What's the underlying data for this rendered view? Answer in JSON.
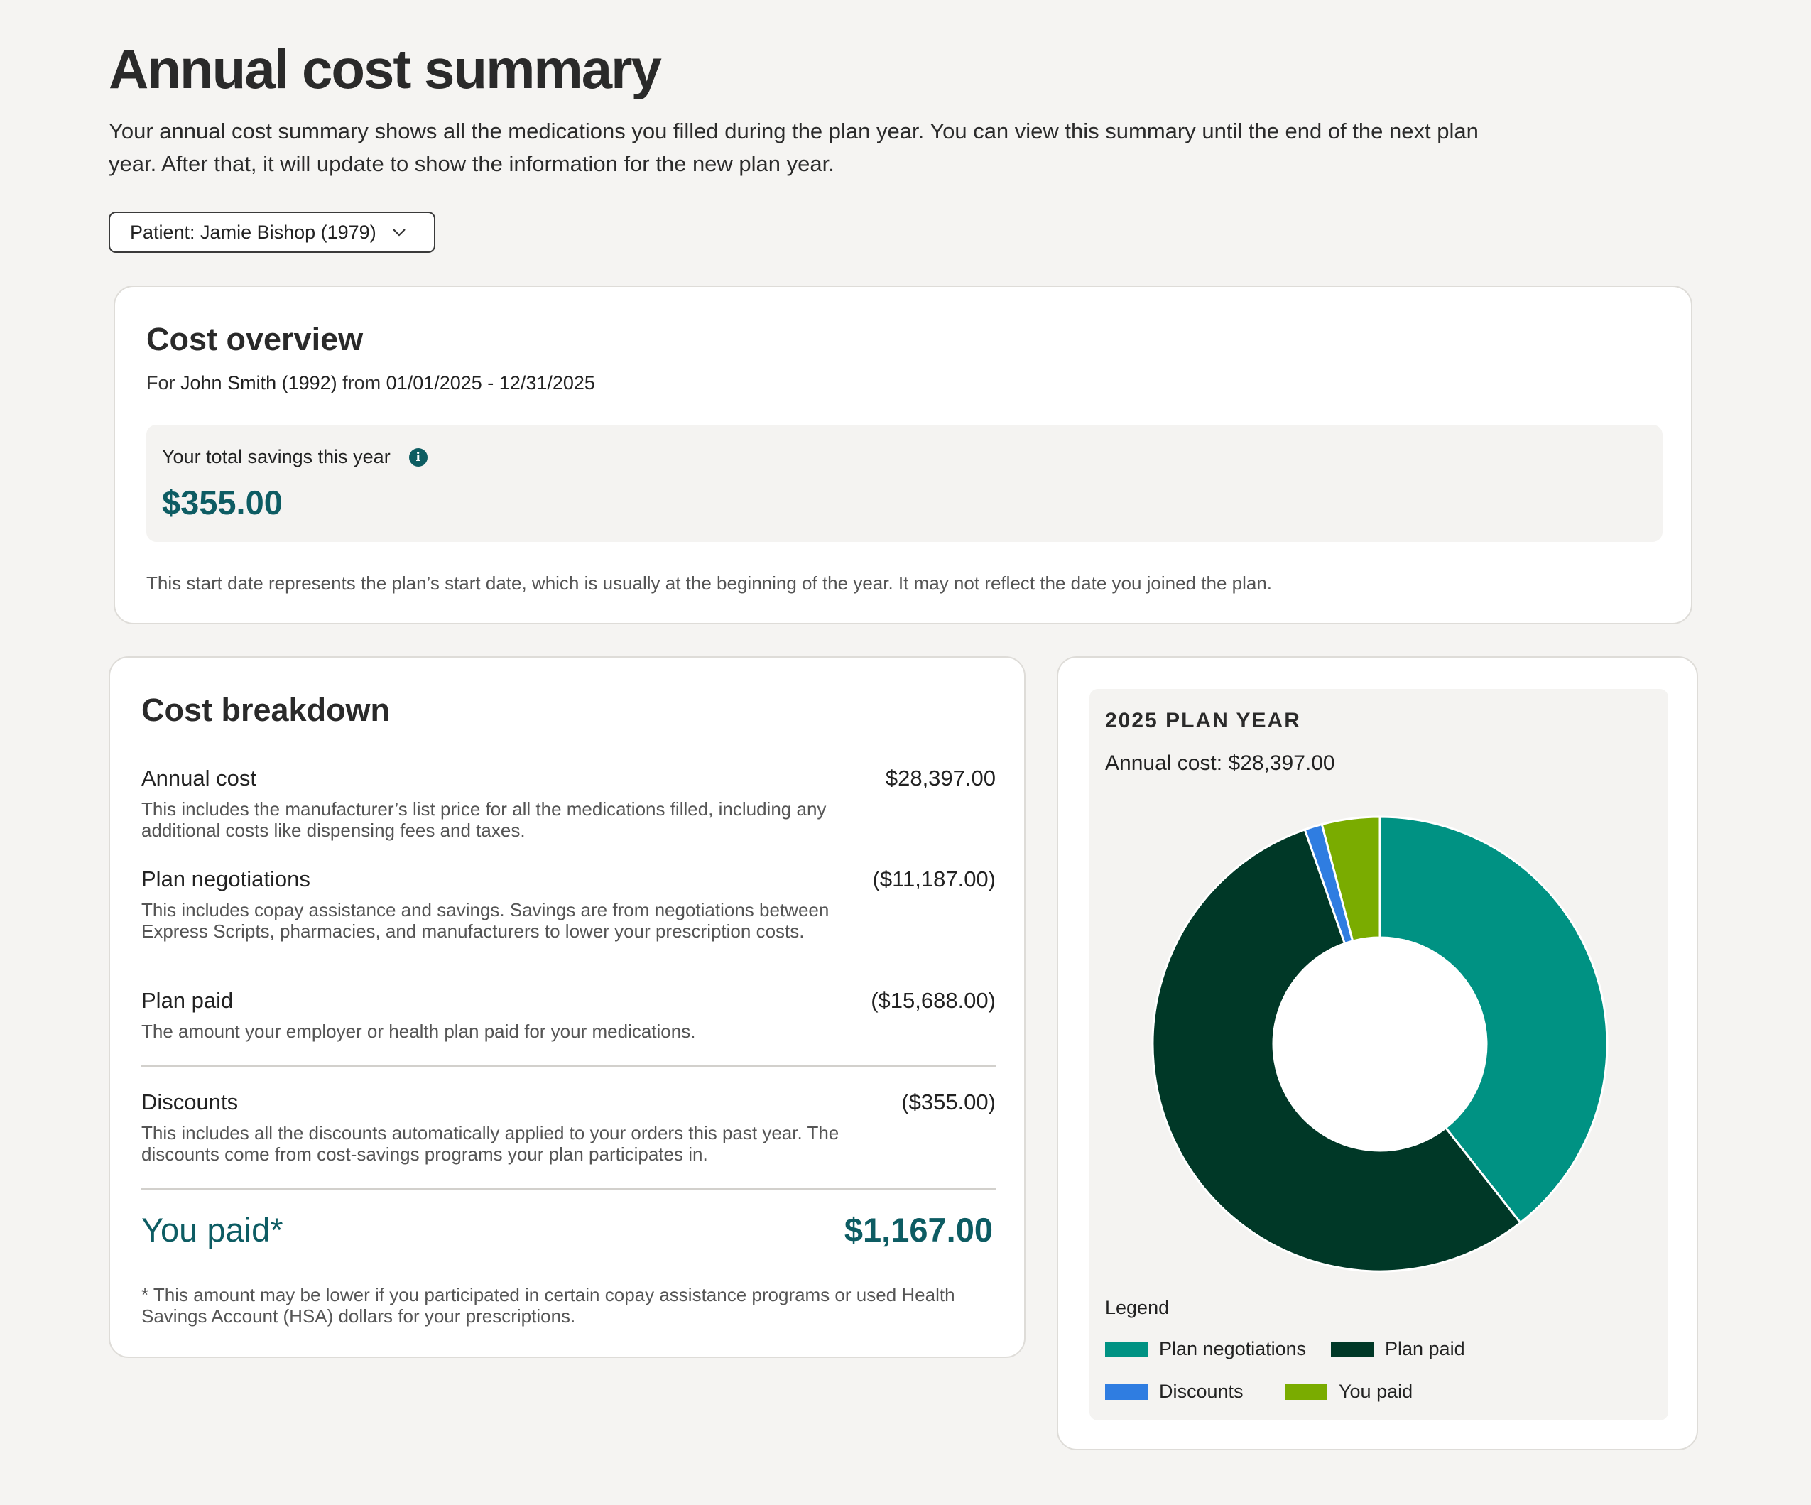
{
  "page": {
    "title": "Annual cost summary",
    "intro": "Your annual cost summary shows all the medications you filled during the plan year. You can view this summary until the end of the next plan year. After that, it will update to show the information for the new plan year.",
    "patient_select": "Patient: Jamie Bishop (1979)"
  },
  "overview": {
    "title": "Cost overview",
    "for_prefix": "For",
    "person": "John Smith (1992)",
    "from_word": "from",
    "date_range": "01/01/2025 - 12/31/2025",
    "savings_label": "Your total savings this year",
    "savings_amount": "$355.00",
    "note": "This start date represents the plan’s start date, which is usually at the beginning of the year. It may not reflect the date you joined the plan."
  },
  "breakdown": {
    "title": "Cost breakdown",
    "rows": [
      {
        "title": "Annual cost",
        "amount": "$28,397.00",
        "desc": "This includes the manufacturer’s list price for all the medications filled, including any additional costs like dispensing fees and taxes."
      },
      {
        "title": "Plan negotiations",
        "amount": "($11,187.00)",
        "desc": "This includes copay assistance and savings. Savings are from negotiations between Express Scripts, pharmacies, and manufacturers to lower your prescription costs."
      },
      {
        "title": "Plan paid",
        "amount": "($15,688.00)",
        "desc": "The amount your employer or health plan paid for your medications."
      },
      {
        "title": "Discounts",
        "amount": "($355.00)",
        "desc": "This includes all the discounts automatically applied to your orders this past year. The discounts come from cost-savings programs your plan participates in."
      }
    ],
    "you_paid_label": "You paid*",
    "you_paid_amount": "$1,167.00",
    "footnote": "* This amount may be lower if you participated in certain copay assistance programs or used Health Savings Account (HSA) dollars for your prescriptions."
  },
  "chart_panel": {
    "plan_year": "2025 PLAN YEAR",
    "annual_cost_label": "Annual cost:",
    "annual_cost_value": "$28,397.00",
    "legend_title": "Legend"
  },
  "chart_data": {
    "type": "pie",
    "donut": true,
    "categories": [
      "Plan negotiations",
      "Plan paid",
      "Discounts",
      "You paid"
    ],
    "values": [
      11187,
      15688,
      355,
      1167
    ],
    "colors": [
      "#009283",
      "#003827",
      "#2f7de1",
      "#7aac00"
    ],
    "title": "2025 PLAN YEAR",
    "legend_position": "bottom"
  }
}
